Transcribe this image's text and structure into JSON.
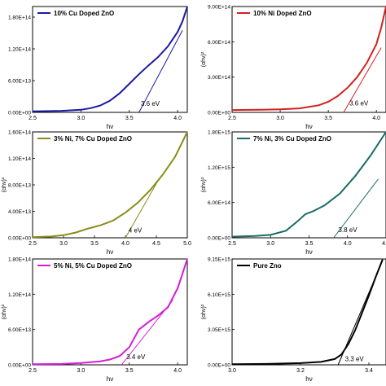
{
  "chart_data": [
    {
      "type": "line",
      "legend": "10% Cu Doped ZnO",
      "color": "#1a1aa6",
      "xlabel": "hν",
      "ylabel": "",
      "xlim": [
        2.5,
        4.1
      ],
      "ylim": [
        0,
        200000000000000.0
      ],
      "xticks": [
        {
          "v": 2.5,
          "label": "2.5"
        },
        {
          "v": 3.0,
          "label": "3.0"
        },
        {
          "v": 3.5,
          "label": "3.5"
        },
        {
          "v": 4.0,
          "label": "4.0"
        }
      ],
      "yticks": [
        {
          "v": 0,
          "label": "0.00E+00"
        },
        {
          "v": 60000000000000.0,
          "label": "6.00E+13"
        },
        {
          "v": 120000000000000.0,
          "label": "1.20E+14"
        },
        {
          "v": 180000000000000.0,
          "label": "1.80E+14"
        }
      ],
      "series": [
        {
          "x": [
            2.5,
            2.8,
            3.0,
            3.1,
            3.2,
            3.3,
            3.4,
            3.5,
            3.6,
            3.7,
            3.8,
            3.9,
            4.0,
            4.05,
            4.1
          ],
          "y": [
            2000000000000.0,
            3000000000000.0,
            5000000000000.0,
            8000000000000.0,
            13000000000000.0,
            22000000000000.0,
            36000000000000.0,
            54000000000000.0,
            72000000000000.0,
            89000000000000.0,
            105000000000000.0,
            125000000000000.0,
            152000000000000.0,
            172000000000000.0,
            200000000000000.0
          ]
        }
      ],
      "tangent": {
        "x": [
          3.6,
          4.05
        ],
        "y": [
          0,
          155000000000000.0
        ]
      },
      "annotation": {
        "text": "3.6 eV",
        "x": 3.62,
        "y": 12000000000000.0
      }
    },
    {
      "type": "line",
      "legend": "10% Ni Doped ZnO",
      "color": "#d42020",
      "xlabel": "hν",
      "ylabel": "(αhν)²",
      "xlim": [
        2.5,
        4.1
      ],
      "ylim": [
        0,
        900000000000000.0
      ],
      "xticks": [
        {
          "v": 2.5,
          "label": "2.5"
        },
        {
          "v": 3.0,
          "label": "3.0"
        },
        {
          "v": 3.5,
          "label": "3.5"
        },
        {
          "v": 4.0,
          "label": "4.0"
        }
      ],
      "yticks": [
        {
          "v": 0,
          "label": "0.00E+00"
        },
        {
          "v": 300000000000000.0,
          "label": "3.00E+14"
        },
        {
          "v": 600000000000000.0,
          "label": "6.00E+14"
        },
        {
          "v": 900000000000000.0,
          "label": "9.00E+14"
        }
      ],
      "series": [
        {
          "x": [
            2.5,
            2.8,
            3.0,
            3.2,
            3.4,
            3.5,
            3.6,
            3.7,
            3.8,
            3.9,
            4.0,
            4.05,
            4.1
          ],
          "y": [
            20000000000000.0,
            22000000000000.0,
            26000000000000.0,
            34000000000000.0,
            60000000000000.0,
            90000000000000.0,
            140000000000000.0,
            210000000000000.0,
            300000000000000.0,
            420000000000000.0,
            580000000000000.0,
            720000000000000.0,
            900000000000000.0
          ]
        }
      ],
      "tangent": {
        "x": [
          3.66,
          4.05
        ],
        "y": [
          0,
          550000000000000.0
        ]
      },
      "annotation": {
        "text": "3.6 eV",
        "x": 3.72,
        "y": 60000000000000.0
      }
    },
    {
      "type": "line",
      "legend": "3% Ni, 7% Cu Doped ZnO",
      "color": "#8b8b1a",
      "xlabel": "hν",
      "ylabel": "(αhν)²",
      "xlim": [
        2.5,
        5.0
      ],
      "ylim": [
        0,
        160000000000000.0
      ],
      "xticks": [
        {
          "v": 2.5,
          "label": "2.5"
        },
        {
          "v": 3.0,
          "label": "3.0"
        },
        {
          "v": 3.5,
          "label": "3.5"
        },
        {
          "v": 4.0,
          "label": "4.0"
        },
        {
          "v": 4.5,
          "label": "4.5"
        },
        {
          "v": 5.0,
          "label": "5.0"
        }
      ],
      "yticks": [
        {
          "v": 0,
          "label": "0.00E+00"
        },
        {
          "v": 40000000000000.0,
          "label": "4.00E+13"
        },
        {
          "v": 80000000000000.0,
          "label": "8.00E+13"
        },
        {
          "v": 120000000000000.0,
          "label": "1.20E+14"
        },
        {
          "v": 160000000000000.0,
          "label": "1.60E+14"
        }
      ],
      "series": [
        {
          "x": [
            2.5,
            2.8,
            3.0,
            3.2,
            3.4,
            3.6,
            3.8,
            4.0,
            4.2,
            4.4,
            4.6,
            4.8,
            5.0
          ],
          "y": [
            1000000000000.0,
            2000000000000.0,
            4000000000000.0,
            8000000000000.0,
            14000000000000.0,
            19000000000000.0,
            26000000000000.0,
            38000000000000.0,
            53000000000000.0,
            72000000000000.0,
            95000000000000.0,
            122000000000000.0,
            160000000000000.0
          ]
        }
      ],
      "tangent": {
        "x": [
          4.0,
          4.55
        ],
        "y": [
          0,
          90000000000000.0
        ]
      },
      "annotation": {
        "text": "4 eV",
        "x": 4.05,
        "y": 8000000000000.0
      }
    },
    {
      "type": "line",
      "legend": "7% Ni, 3% Cu Doped ZnO",
      "color": "#1a6b66",
      "xlabel": "hν",
      "ylabel": "(αhν)²",
      "xlim": [
        2.5,
        4.5
      ],
      "ylim": [
        0,
        1800000000000000.0
      ],
      "xticks": [
        {
          "v": 2.5,
          "label": "2.5"
        },
        {
          "v": 3.0,
          "label": "3.0"
        },
        {
          "v": 3.5,
          "label": "3.5"
        },
        {
          "v": 4.0,
          "label": "4.0"
        },
        {
          "v": 4.5,
          "label": "4.5"
        }
      ],
      "yticks": [
        {
          "v": 0,
          "label": "0.00E+00"
        },
        {
          "v": 600000000000000.0,
          "label": "6.00E+14"
        },
        {
          "v": 1200000000000000.0,
          "label": "1.20E+15"
        },
        {
          "v": 1800000000000000.0,
          "label": "1.80E+15"
        }
      ],
      "series": [
        {
          "x": [
            2.5,
            2.8,
            3.0,
            3.2,
            3.35,
            3.45,
            3.55,
            3.7,
            3.9,
            4.1,
            4.3,
            4.5
          ],
          "y": [
            20000000000000.0,
            30000000000000.0,
            50000000000000.0,
            120000000000000.0,
            280000000000000.0,
            400000000000000.0,
            450000000000000.0,
            550000000000000.0,
            750000000000000.0,
            1050000000000000.0,
            1400000000000000.0,
            1800000000000000.0
          ]
        }
      ],
      "tangent": {
        "x": [
          3.82,
          4.4
        ],
        "y": [
          0,
          1000000000000000.0
        ]
      },
      "annotation": {
        "text": "3.8 eV",
        "x": 3.88,
        "y": 100000000000000.0
      }
    },
    {
      "type": "line",
      "legend": "5% Ni, 5% Cu Doped ZnO",
      "color": "#d81bd8",
      "xlabel": "hν",
      "ylabel": "(αhν)²",
      "xlim": [
        2.5,
        4.1
      ],
      "ylim": [
        0,
        180000000000000.0
      ],
      "xticks": [
        {
          "v": 2.5,
          "label": "2.5"
        },
        {
          "v": 3.0,
          "label": "3.0"
        },
        {
          "v": 3.5,
          "label": "3.5"
        },
        {
          "v": 4.0,
          "label": "4.0"
        }
      ],
      "yticks": [
        {
          "v": 0,
          "label": "0.00E+00"
        },
        {
          "v": 60000000000000.0,
          "label": "6.00E+13"
        },
        {
          "v": 120000000000000.0,
          "label": "1.20E+14"
        },
        {
          "v": 180000000000000.0,
          "label": "1.80E+14"
        }
      ],
      "series": [
        {
          "x": [
            2.5,
            2.8,
            3.0,
            3.2,
            3.3,
            3.4,
            3.5,
            3.6,
            3.7,
            3.8,
            3.9,
            4.0,
            4.05,
            4.1
          ],
          "y": [
            1000000000000.0,
            1500000000000.0,
            3000000000000.0,
            6000000000000.0,
            9000000000000.0,
            15000000000000.0,
            30000000000000.0,
            60000000000000.0,
            73000000000000.0,
            84000000000000.0,
            98000000000000.0,
            130000000000000.0,
            155000000000000.0,
            180000000000000.0
          ]
        }
      ],
      "tangent": {
        "x": [
          3.42,
          3.95
        ],
        "y": [
          0,
          110000000000000.0
        ]
      },
      "annotation": {
        "text": "3.4 eV",
        "x": 3.47,
        "y": 10000000000000.0
      }
    },
    {
      "type": "line",
      "legend": "Pure Zno",
      "color": "#000000",
      "xlabel": "hν",
      "ylabel": "(αhν)²",
      "xlim": [
        3.0,
        3.45
      ],
      "ylim": [
        0,
        9150000000000000.0
      ],
      "xticks": [
        {
          "v": 3.0,
          "label": "3.0"
        },
        {
          "v": 3.2,
          "label": "3.2"
        },
        {
          "v": 3.4,
          "label": "3.4"
        }
      ],
      "yticks": [
        {
          "v": 0,
          "label": "0.00E+00"
        },
        {
          "v": 3050000000000000.0,
          "label": "3.05E+15"
        },
        {
          "v": 6100000000000000.0,
          "label": "6.10E+15"
        },
        {
          "v": 9150000000000000.0,
          "label": "9.15E+15"
        }
      ],
      "series": [
        {
          "x": [
            3.0,
            3.1,
            3.2,
            3.26,
            3.3,
            3.32,
            3.34,
            3.36,
            3.38,
            3.4,
            3.42,
            3.44
          ],
          "y": [
            50000000000000.0,
            80000000000000.0,
            150000000000000.0,
            250000000000000.0,
            500000000000000.0,
            900000000000000.0,
            1800000000000000.0,
            3000000000000000.0,
            4500000000000000.0,
            6000000000000000.0,
            7600000000000000.0,
            9100000000000000.0
          ]
        }
      ],
      "tangent": {
        "x": [
          3.31,
          3.44
        ],
        "y": [
          0,
          9000000000000000.0
        ]
      },
      "annotation": {
        "text": "3.3 eV",
        "x": 3.33,
        "y": 300000000000000.0
      }
    }
  ]
}
